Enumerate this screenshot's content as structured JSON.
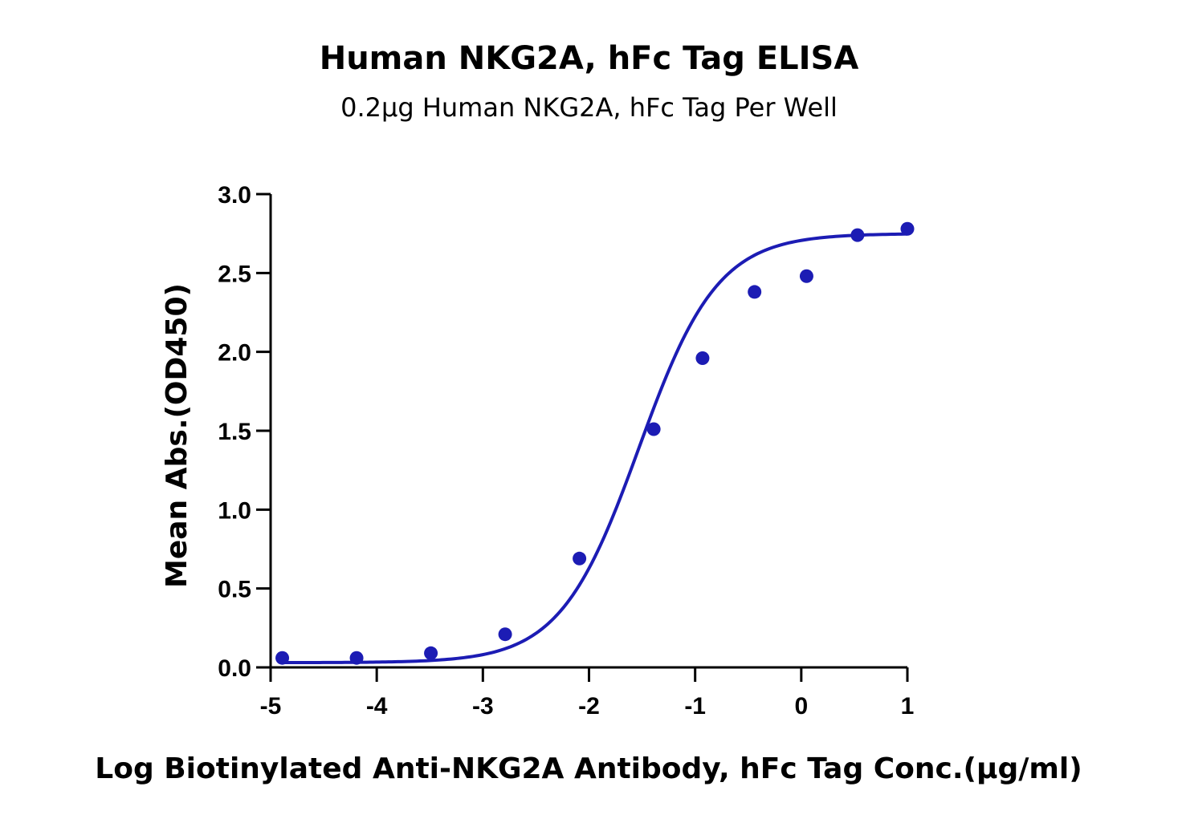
{
  "chart_data": {
    "type": "scatter",
    "title": "Human NKG2A, hFc Tag ELISA",
    "subtitle": "0.2µg Human NKG2A, hFc Tag Per Well",
    "xlabel": "Log Biotinylated Anti-NKG2A Antibody, hFc Tag Conc.(µg/ml)",
    "ylabel": "Mean Abs.(OD450)",
    "xlim": [
      -5,
      1
    ],
    "ylim": [
      0,
      3.0
    ],
    "x_ticks": [
      -5,
      -4,
      -3,
      -2,
      -1,
      0,
      1
    ],
    "x_tick_labels": [
      "-5",
      "-4",
      "-3",
      "-2",
      "-1",
      "0",
      "1"
    ],
    "y_ticks": [
      0,
      0.5,
      1.0,
      1.5,
      2.0,
      2.5,
      3.0
    ],
    "y_tick_labels": [
      "0.0",
      "0.5",
      "1.0",
      "1.5",
      "2.0",
      "2.5",
      "3.0"
    ],
    "grid": false,
    "color": "#1c1cb4",
    "points": {
      "x": [
        -4.89,
        -4.19,
        -3.49,
        -2.79,
        -2.09,
        -1.39,
        -0.93,
        -0.44,
        0.05,
        0.53,
        1.0
      ],
      "y": [
        0.06,
        0.06,
        0.09,
        0.21,
        0.69,
        1.51,
        1.96,
        2.38,
        2.48,
        2.74,
        2.78
      ]
    },
    "fit_curve": {
      "type": "4PL",
      "bottom": 0.03,
      "top": 2.75,
      "log_ec50": -1.53,
      "hill_slope": 1.17
    }
  }
}
